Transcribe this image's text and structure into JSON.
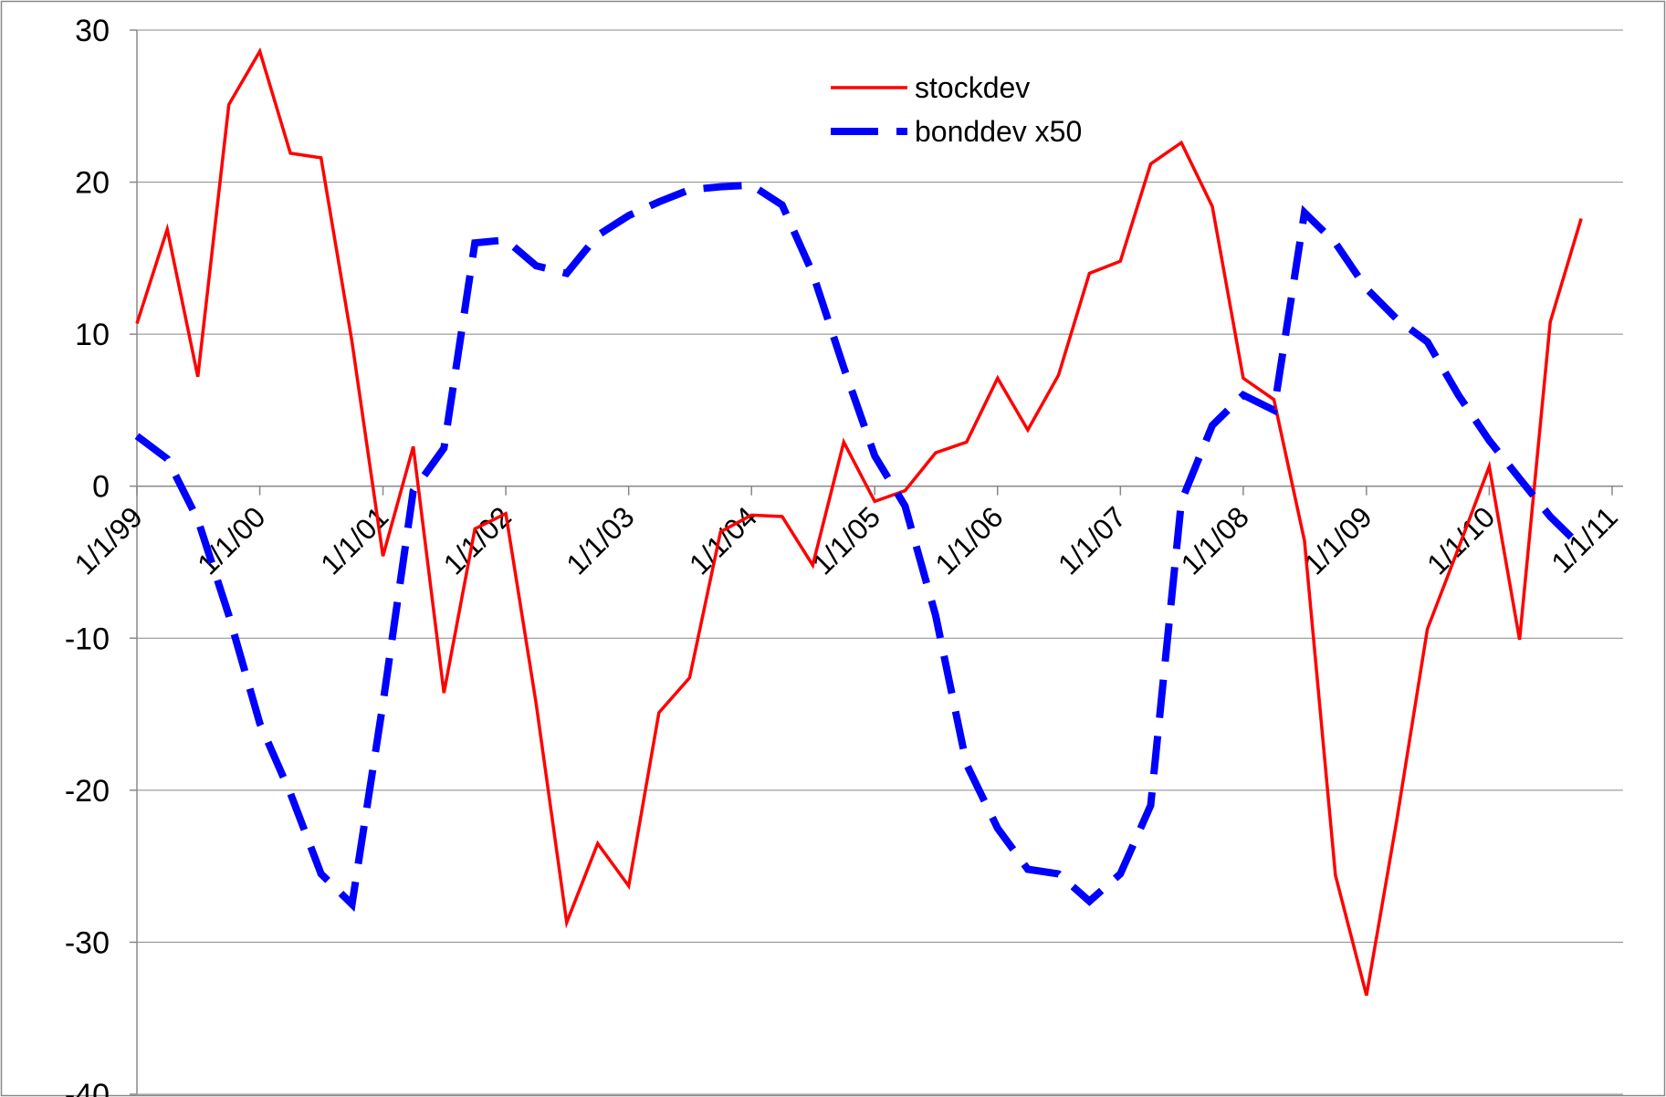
{
  "chart_data": {
    "type": "line",
    "title": "",
    "xlabel": "",
    "ylabel": "",
    "ylim": [
      -40,
      30
    ],
    "yticks": [
      30,
      20,
      10,
      0,
      -10,
      -20,
      -30,
      -40
    ],
    "ytick_labels": [
      "30",
      "20",
      "10",
      "0",
      "-10",
      "-20",
      "-30",
      "-40"
    ],
    "xlim": [
      "1999-01-01",
      "2011-01-01"
    ],
    "xticks": [
      "1999-01-01",
      "2000-01-01",
      "2001-01-01",
      "2002-01-01",
      "2003-01-01",
      "2004-01-01",
      "2005-01-01",
      "2006-01-01",
      "2007-01-01",
      "2008-01-01",
      "2009-01-01",
      "2010-01-01",
      "2011-01-01"
    ],
    "xtick_labels": [
      "1/1/99",
      "1/1/00",
      "1/1/01",
      "1/1/02",
      "1/1/03",
      "1/1/04",
      "1/1/05",
      "1/1/06",
      "1/1/07",
      "1/1/08",
      "1/1/09",
      "1/1/10",
      "1/1/11"
    ],
    "grid": true,
    "legend_position": "top-center",
    "series": [
      {
        "name": "stockdev",
        "color": "#ff0000",
        "style": "solid",
        "x": [
          "1999-01-01",
          "1999-04-01",
          "1999-07-01",
          "1999-10-01",
          "2000-01-01",
          "2000-04-01",
          "2000-07-01",
          "2000-10-01",
          "2001-01-01",
          "2001-04-01",
          "2001-07-01",
          "2001-10-01",
          "2002-01-01",
          "2002-04-01",
          "2002-07-01",
          "2002-10-01",
          "2003-01-01",
          "2003-04-01",
          "2003-07-01",
          "2003-10-01",
          "2004-01-01",
          "2004-04-01",
          "2004-07-01",
          "2004-10-01",
          "2005-01-01",
          "2005-04-01",
          "2005-07-01",
          "2005-10-01",
          "2006-01-01",
          "2006-04-01",
          "2006-07-01",
          "2006-10-01",
          "2007-01-01",
          "2007-04-01",
          "2007-07-01",
          "2007-10-01",
          "2008-01-01",
          "2008-04-01",
          "2008-07-01",
          "2008-10-01",
          "2009-01-01",
          "2009-04-01",
          "2009-07-01",
          "2009-10-01",
          "2010-01-01",
          "2010-04-01",
          "2010-07-01",
          "2010-10-01"
        ],
        "values": [
          10.7,
          16.9,
          7.2,
          25.1,
          28.6,
          21.9,
          21.6,
          9.5,
          -4.6,
          2.6,
          -13.6,
          -2.8,
          -1.8,
          -14.3,
          -28.7,
          -23.5,
          -26.3,
          -14.9,
          -12.6,
          -3.0,
          -1.9,
          -2.0,
          -5.2,
          2.9,
          -1.0,
          -0.3,
          2.2,
          2.9,
          7.1,
          3.7,
          7.3,
          14.0,
          14.8,
          21.2,
          22.6,
          18.4,
          7.1,
          5.7,
          -3.6,
          -25.6,
          -33.5,
          -22.0,
          -9.4,
          -4.1,
          1.3,
          -10.1,
          10.8,
          17.6
        ]
      },
      {
        "name": "bonddev x50",
        "color": "#0000ff",
        "style": "dashed",
        "x": [
          "1999-01-01",
          "1999-04-01",
          "1999-07-01",
          "1999-10-01",
          "2000-01-01",
          "2000-04-01",
          "2000-07-01",
          "2000-10-01",
          "2001-01-01",
          "2001-04-01",
          "2001-07-01",
          "2001-10-01",
          "2002-01-01",
          "2002-04-01",
          "2002-07-01",
          "2002-10-01",
          "2003-01-01",
          "2003-04-01",
          "2003-07-01",
          "2003-10-01",
          "2004-01-01",
          "2004-04-01",
          "2004-07-01",
          "2004-10-01",
          "2005-01-01",
          "2005-04-01",
          "2005-07-01",
          "2005-10-01",
          "2006-01-01",
          "2006-04-01",
          "2006-07-01",
          "2006-10-01",
          "2007-01-01",
          "2007-04-01",
          "2007-07-01",
          "2007-10-01",
          "2008-01-01",
          "2008-04-01",
          "2008-07-01",
          "2008-10-01",
          "2009-01-01",
          "2009-04-01",
          "2009-07-01",
          "2009-10-01",
          "2010-01-01",
          "2010-04-01",
          "2010-07-01",
          "2010-10-01"
        ],
        "values": [
          3.3,
          1.8,
          -2.2,
          -8.5,
          -15.6,
          -20.2,
          -25.5,
          -27.5,
          -14.3,
          -0.3,
          2.5,
          16.0,
          16.2,
          14.5,
          14.0,
          16.5,
          17.8,
          18.7,
          19.5,
          19.7,
          19.8,
          18.5,
          14.0,
          7.8,
          2.0,
          -1.3,
          -8.5,
          -18.3,
          -22.5,
          -25.2,
          -25.5,
          -27.3,
          -25.5,
          -21.0,
          -1.0,
          4.0,
          6.0,
          5.0,
          18.0,
          16.0,
          13.0,
          11.0,
          9.5,
          6.0,
          3.0,
          0.5,
          -2.0,
          -4.0
        ]
      }
    ]
  }
}
